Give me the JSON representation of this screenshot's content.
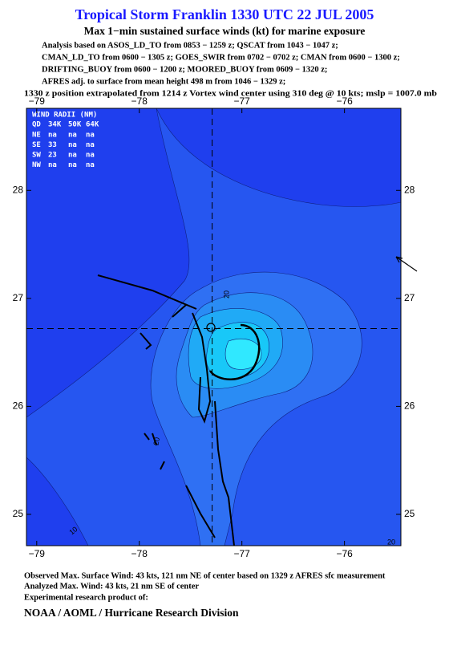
{
  "header": {
    "title": "Tropical Storm Franklin 1330 UTC 22 JUL 2005",
    "subtitle": "Max 1−min sustained surface winds (kt) for marine exposure",
    "lines": [
      "Analysis based on  ASOS_LD_TO from 0853 − 1259 z;  QSCAT from 1043 − 1047 z;",
      "CMAN_LD_TO from 0600 − 1305 z;  GOES_SWIR from 0702 − 0702 z;  CMAN from 0600 − 1300 z;",
      "DRIFTING_BUOY from 0600 − 1200 z;  MOORED_BUOY from 0609 − 1320 z;",
      "AFRES adj. to surface from mean height 498 m from 1046 − 1329 z;",
      "1330 z position extrapolated from 1214 z Vortex wind center using 310 deg @ 10 kts; mslp = 1007.0 mb"
    ]
  },
  "map": {
    "xlim": [
      -79.1,
      -75.45
    ],
    "ylim": [
      24.71,
      28.76
    ],
    "xticks": [
      {
        "value": -79,
        "label": "−79"
      },
      {
        "value": -78,
        "label": "−78"
      },
      {
        "value": -77,
        "label": "−77"
      },
      {
        "value": -76,
        "label": "−76"
      }
    ],
    "yticks": [
      25,
      26,
      27,
      28
    ],
    "center": {
      "lon": -77.29,
      "lat": 26.72
    },
    "contour_labels": [
      "20",
      "20",
      "10",
      "20"
    ]
  },
  "wind_radii": {
    "title": "WIND RADII (NM)",
    "header": [
      "QD",
      "34K",
      "50K",
      "64K"
    ],
    "rows": [
      [
        "NE",
        "na",
        "na",
        "na"
      ],
      [
        "SE",
        "33",
        "na",
        "na"
      ],
      [
        "SW",
        "23",
        "na",
        "na"
      ],
      [
        "NW",
        "na",
        "na",
        "na"
      ]
    ]
  },
  "footer": {
    "lines": [
      "Observed Max. Surface Wind: 43 kts, 121 nm NE of center based on 1329 z AFRES sfc measurement",
      "Analyzed Max. Wind: 43 kts, 21 nm SE of center",
      "Experimental research product of:"
    ],
    "org": "NOAA / AOML / Hurricane Research Division"
  }
}
